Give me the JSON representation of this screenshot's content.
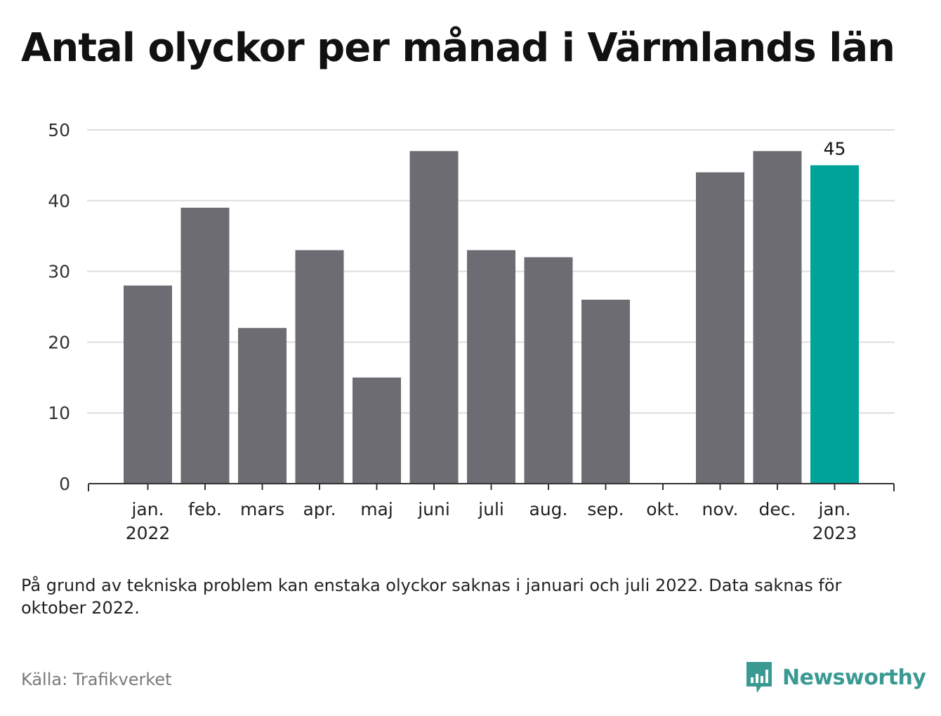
{
  "title": "Antal olyckor per månad i Värmlands län",
  "footnote": "På grund av tekniska problem kan enstaka olyckor saknas i januari och juli 2022. Data saknas för oktober 2022.",
  "source": "Källa: Trafikverket",
  "brand": {
    "name": "Newsworthy",
    "logo_icon": "bar-chart-speech-bubble-icon"
  },
  "colors": {
    "bar": "#6d6c73",
    "highlight": "#00a39a",
    "grid": "#dddddd",
    "axis": "#333333",
    "brand": "#3a9a93"
  },
  "chart_data": {
    "type": "bar",
    "categories": [
      "jan. 2022",
      "feb.",
      "mars",
      "apr.",
      "maj",
      "juni",
      "juli",
      "aug.",
      "sep.",
      "okt.",
      "nov.",
      "dec.",
      "jan. 2023"
    ],
    "tick_labels": [
      [
        "jan.",
        "2022"
      ],
      [
        "feb."
      ],
      [
        "mars"
      ],
      [
        "apr."
      ],
      [
        "maj"
      ],
      [
        "juni"
      ],
      [
        "juli"
      ],
      [
        "aug."
      ],
      [
        "sep."
      ],
      [
        "okt."
      ],
      [
        "nov."
      ],
      [
        "dec."
      ],
      [
        "jan.",
        "2023"
      ]
    ],
    "values": [
      28,
      39,
      22,
      33,
      15,
      47,
      33,
      32,
      26,
      null,
      44,
      47,
      45
    ],
    "highlight_index": 12,
    "data_labels": [
      {
        "index": 12,
        "text": "45"
      }
    ],
    "ylim": [
      0,
      50
    ],
    "yticks": [
      0,
      10,
      20,
      30,
      40,
      50
    ],
    "xlabel": "",
    "ylabel": "",
    "grid": true,
    "legend": "none"
  }
}
